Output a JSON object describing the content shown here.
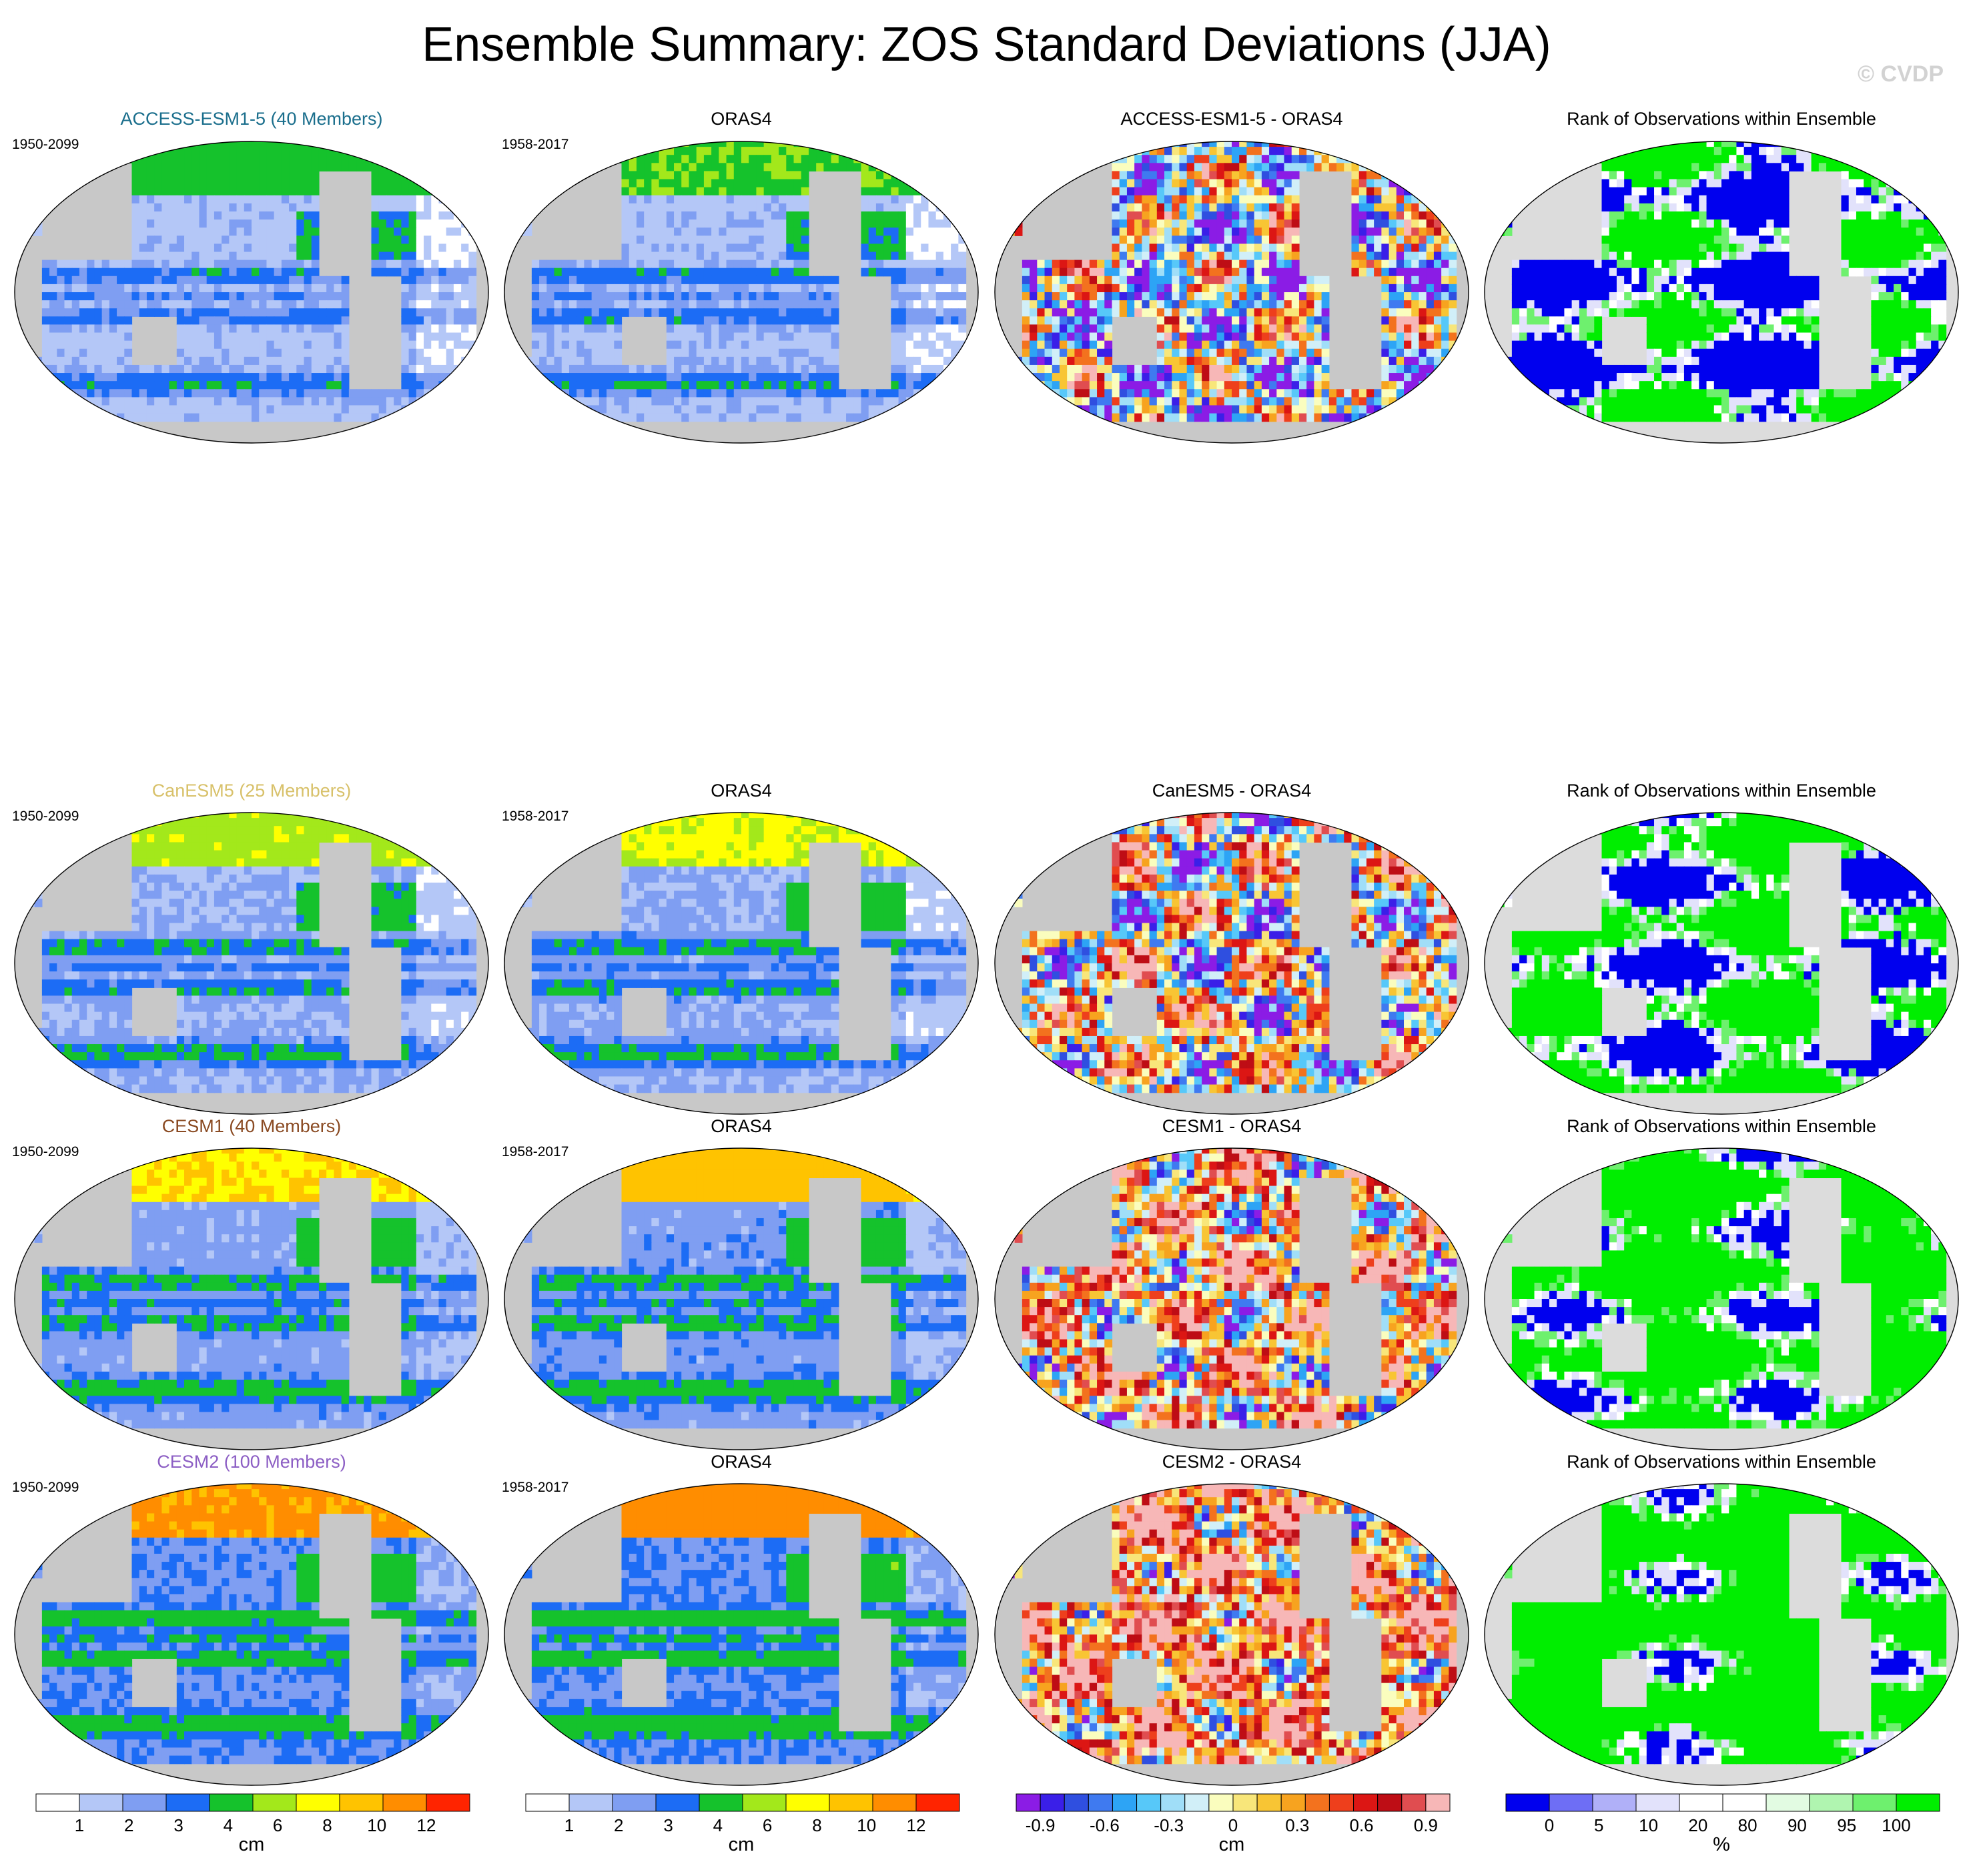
{
  "page": {
    "title": "Ensemble Summary: ZOS Standard Deviations (JJA)",
    "watermark": "© CVDP"
  },
  "rows": [
    {
      "model_title": "ACCESS-ESM1-5 (40 Members)",
      "model_color": "#1a6e8c",
      "model_period": "1950-2099",
      "obs_title": "ORAS4",
      "obs_period": "1958-2017",
      "diff_title": "ACCESS-ESM1-5 - ORAS4",
      "rank_title": "Rank of Observations within Ensemble"
    },
    {
      "model_title": "CanESM5 (25 Members)",
      "model_color": "#d8c16a",
      "model_period": "1950-2099",
      "obs_title": "ORAS4",
      "obs_period": "1958-2017",
      "diff_title": "CanESM5 - ORAS4",
      "rank_title": "Rank of Observations within Ensemble"
    },
    {
      "model_title": "CESM1 (40 Members)",
      "model_color": "#8a4a22",
      "model_period": "1950-2099",
      "obs_title": "ORAS4",
      "obs_period": "1958-2017",
      "diff_title": "CESM1 - ORAS4",
      "rank_title": "Rank of Observations within Ensemble"
    },
    {
      "model_title": "CESM2 (100 Members)",
      "model_color": "#8c5ec4",
      "model_period": "1950-2099",
      "obs_title": "ORAS4",
      "obs_period": "1958-2017",
      "diff_title": "CESM2 - ORAS4",
      "rank_title": "Rank of Observations within Ensemble"
    }
  ],
  "colorbars": [
    {
      "unit": "cm",
      "colors": [
        "#ffffff",
        "#b4c7f7",
        "#7f9ef2",
        "#1c6cf5",
        "#15c22c",
        "#a3e81b",
        "#ffff00",
        "#ffc300",
        "#ff8d00",
        "#ff2400"
      ],
      "labels": [
        "1",
        "2",
        "3",
        "4",
        "6",
        "8",
        "10",
        "12"
      ]
    },
    {
      "unit": "cm",
      "colors": [
        "#ffffff",
        "#b4c7f7",
        "#7f9ef2",
        "#1c6cf5",
        "#15c22c",
        "#a3e81b",
        "#ffff00",
        "#ffc300",
        "#ff8d00",
        "#ff2400"
      ],
      "labels": [
        "1",
        "2",
        "3",
        "4",
        "6",
        "8",
        "10",
        "12"
      ]
    },
    {
      "unit": "cm",
      "colors": [
        "#8b1ce5",
        "#3a1fe8",
        "#2f4fe0",
        "#3f7af0",
        "#2da4f5",
        "#57c8f9",
        "#a0def8",
        "#d1eff8",
        "#fafdbe",
        "#f8e67a",
        "#f8c534",
        "#f7a31f",
        "#f3721e",
        "#ee3f1c",
        "#dc1614",
        "#be0d15",
        "#e04d50",
        "#f7b7b7"
      ],
      "labels": [
        "-0.9",
        "-0.6",
        "-0.3",
        "0",
        "0.3",
        "0.6",
        "0.9"
      ]
    },
    {
      "unit": "%",
      "colors": [
        "#0000ee",
        "#6e6ef5",
        "#b0b0f8",
        "#e2e2fb",
        "#ffffff",
        "#ffffff",
        "#e2fbe2",
        "#b0f5b0",
        "#6ef06e",
        "#00ee00"
      ],
      "labels": [
        "0",
        "5",
        "10",
        "20",
        "80",
        "90",
        "95",
        "100"
      ]
    }
  ],
  "chart_data": {
    "type": "map-grid",
    "title": "Ensemble Summary: ZOS Standard Deviations (JJA)",
    "variable": "ZOS standard deviation",
    "season": "JJA",
    "units": "cm",
    "models": [
      "ACCESS-ESM1-5",
      "CanESM5",
      "CESM1",
      "CESM2"
    ],
    "observations": "ORAS4",
    "stddev_levels": [
      1,
      2,
      3,
      4,
      6,
      8,
      10,
      12
    ],
    "difference_levels": [
      -0.9,
      -0.6,
      -0.3,
      0,
      0.3,
      0.6,
      0.9
    ],
    "rank_levels_percent": [
      0,
      5,
      10,
      20,
      80,
      90,
      95,
      100
    ]
  }
}
